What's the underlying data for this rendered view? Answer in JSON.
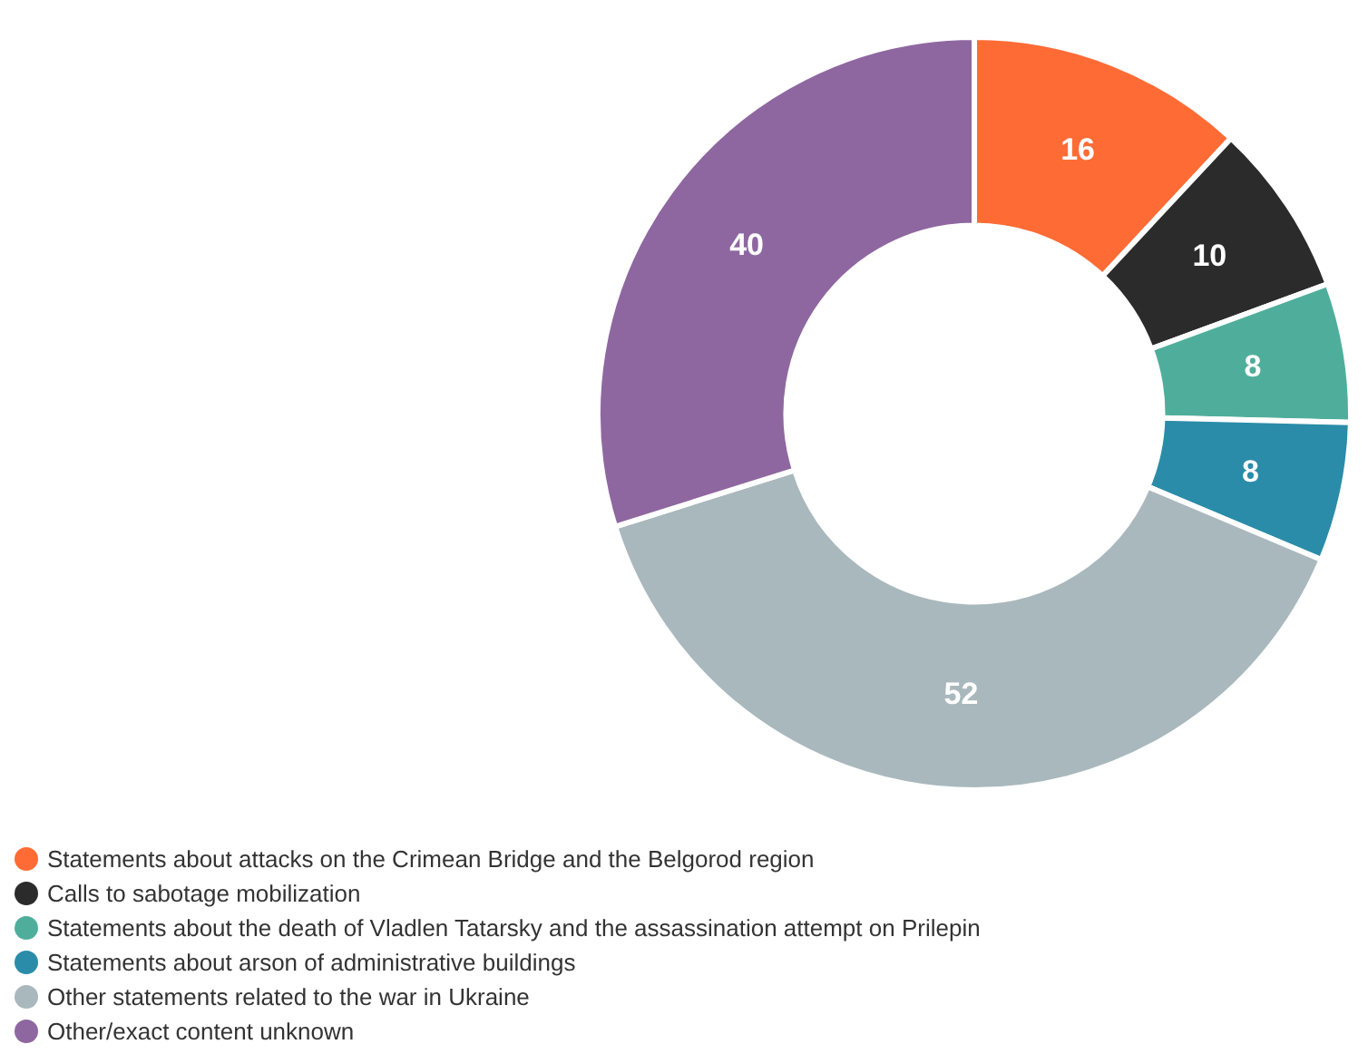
{
  "chart_data": {
    "type": "donut",
    "categories": [
      "Statements about attacks on the Crimean Bridge and the Belgorod region",
      "Calls to sabotage mobilization",
      "Statements about the death of Vladlen Tatarsky and the assassination attempt on Prilepin",
      "Statements about arson of administrative buildings",
      "Other statements related to the war in Ukraine",
      "Other/exact content unknown"
    ],
    "values": [
      16,
      10,
      8,
      8,
      52,
      40
    ],
    "colors": [
      "#ff6b35",
      "#2b2b2b",
      "#4fae9b",
      "#2a8ca8",
      "#a9b8bd",
      "#8e67a0"
    ],
    "data_labels": true,
    "legend": "bottom left"
  }
}
